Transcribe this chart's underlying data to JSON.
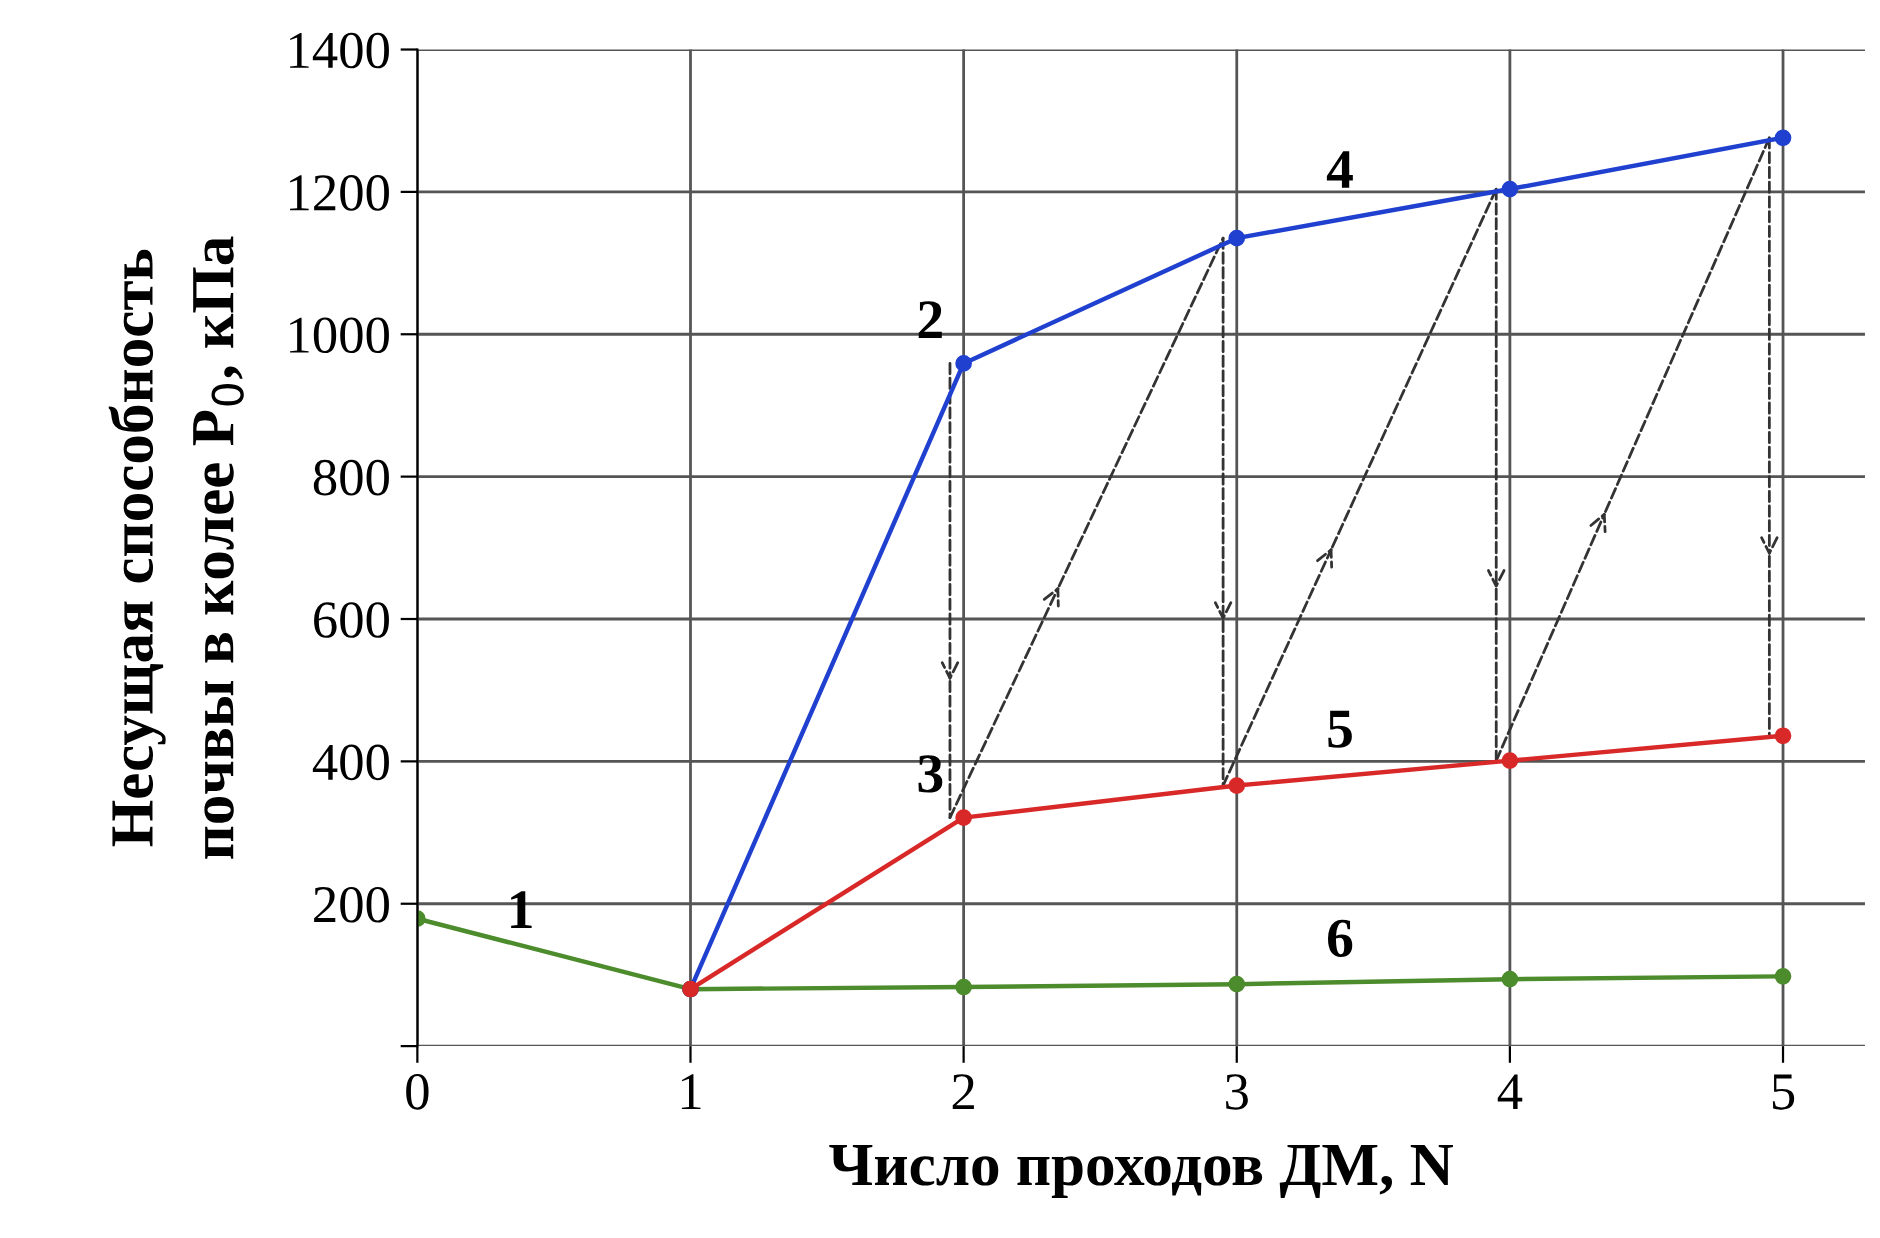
{
  "chart_data": {
    "type": "line",
    "xlabel": "Число проходов ДМ, N",
    "ylabel": "Несущая способность\nпочвы в колее P$_{0}$, кПа",
    "series": [
      {
        "color": "#4c8c2c",
        "x": [
          0,
          1,
          2,
          3,
          4,
          5
        ],
        "values": [
          179,
          80,
          83,
          87,
          94,
          98
        ]
      },
      {
        "color": "#2040d0",
        "x": [
          1,
          2,
          3,
          4,
          5
        ],
        "values": [
          80,
          959,
          1135,
          1204,
          1276
        ]
      },
      {
        "color": "#d82828",
        "x": [
          1,
          2,
          3,
          4,
          5
        ],
        "values": [
          80,
          321,
          366,
          401,
          436
        ]
      }
    ],
    "xlim": [
      0,
      5.3
    ],
    "xticks": [
      0,
      1,
      2,
      3,
      4,
      5
    ],
    "ylim": [
      0,
      1400
    ],
    "yticks": [
      {
        "value": 0,
        "label": null
      },
      200,
      400,
      600,
      800,
      1000,
      1200,
      1400
    ],
    "grid": true,
    "marker": "circle",
    "line_style": "solid",
    "legend": false,
    "annotations": [
      {
        "text": "1",
        "x": 0.5,
        "y": 130
      },
      {
        "text": "2",
        "x": 2,
        "y": 959
      },
      {
        "text": "3",
        "x": 2,
        "y": 321
      },
      {
        "text": "4",
        "x": 3.5,
        "y": 1170
      },
      {
        "text": "5",
        "x": 3.5,
        "y": 384
      },
      {
        "text": "6",
        "x": 3.5,
        "y": 90
      }
    ]
  }
}
